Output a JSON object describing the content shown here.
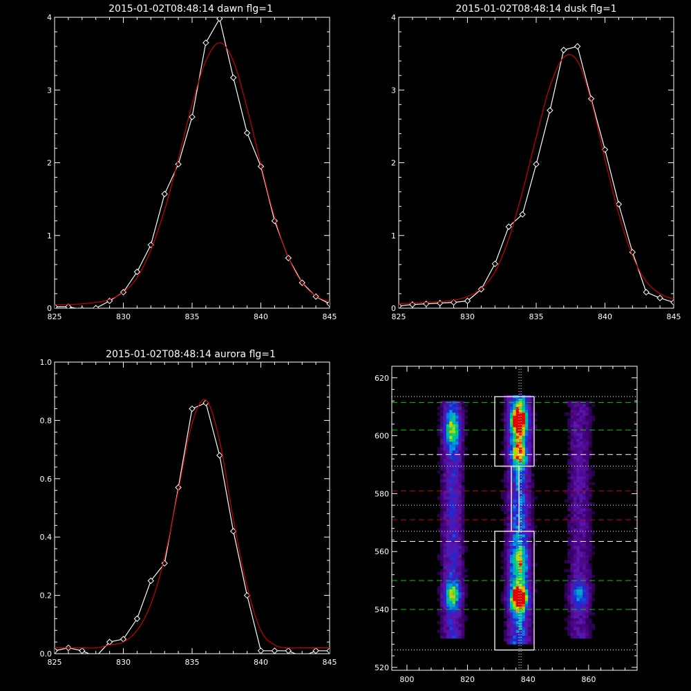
{
  "chart_data": [
    {
      "type": "line",
      "title": "2015-01-02T08:48:14 dawn flg=1",
      "xlim": [
        825,
        845
      ],
      "ylim": [
        0,
        4
      ],
      "xticks": [
        "825",
        "830",
        "835",
        "840",
        "845"
      ],
      "yticks": [
        "0",
        "1",
        "2",
        "3",
        "4"
      ],
      "series": [
        {
          "color": "#ffffff",
          "marker": "diamond",
          "x": [
            825,
            826,
            827,
            828,
            829,
            830,
            831,
            832,
            833,
            834,
            835,
            836,
            837,
            838,
            839,
            840,
            841,
            842,
            843,
            844,
            845
          ],
          "y": [
            0.02,
            0.02,
            -0.02,
            0.0,
            0.1,
            0.22,
            0.5,
            0.87,
            1.57,
            1.98,
            2.63,
            3.65,
            3.98,
            3.17,
            2.41,
            1.95,
            1.2,
            0.69,
            0.35,
            0.16,
            0.06
          ]
        },
        {
          "color": "#cc0000",
          "marker": "none",
          "x": [
            825,
            826,
            827,
            828,
            829,
            830,
            831,
            832,
            833,
            834,
            835,
            836,
            837,
            838,
            839,
            840,
            841,
            842,
            843,
            844,
            845
          ],
          "y": [
            0.05,
            0.05,
            0.06,
            0.08,
            0.12,
            0.22,
            0.42,
            0.8,
            1.35,
            2.05,
            2.8,
            3.4,
            3.65,
            3.4,
            2.75,
            1.98,
            1.25,
            0.7,
            0.35,
            0.17,
            0.09
          ]
        }
      ]
    },
    {
      "type": "line",
      "title": "2015-01-02T08:48:14 dusk flg=1",
      "xlim": [
        825,
        845
      ],
      "ylim": [
        0,
        4
      ],
      "xticks": [
        "825",
        "830",
        "835",
        "840",
        "845"
      ],
      "yticks": [
        "0",
        "1",
        "2",
        "3",
        "4"
      ],
      "series": [
        {
          "color": "#ffffff",
          "marker": "diamond",
          "x": [
            825,
            826,
            827,
            828,
            829,
            830,
            831,
            832,
            833,
            834,
            835,
            836,
            837,
            838,
            839,
            840,
            841,
            842,
            843,
            844,
            845
          ],
          "y": [
            0.03,
            0.05,
            0.06,
            0.07,
            0.08,
            0.1,
            0.26,
            0.61,
            1.12,
            1.29,
            1.98,
            2.72,
            3.55,
            3.6,
            2.88,
            2.18,
            1.43,
            0.77,
            0.22,
            0.14,
            0.08
          ]
        },
        {
          "color": "#cc0000",
          "marker": "none",
          "x": [
            825,
            826,
            827,
            828,
            829,
            830,
            831,
            832,
            833,
            834,
            835,
            836,
            837,
            838,
            839,
            840,
            841,
            842,
            843,
            844,
            845
          ],
          "y": [
            0.06,
            0.07,
            0.08,
            0.09,
            0.11,
            0.16,
            0.27,
            0.5,
            0.95,
            1.6,
            2.35,
            3.05,
            3.45,
            3.4,
            2.85,
            2.05,
            1.3,
            0.72,
            0.37,
            0.2,
            0.13
          ]
        }
      ]
    },
    {
      "type": "line",
      "title": "2015-01-02T08:48:14 aurora flg=1",
      "xlim": [
        825,
        845
      ],
      "ylim": [
        0,
        1
      ],
      "xticks": [
        "825",
        "830",
        "835",
        "840",
        "845"
      ],
      "yticks": [
        "0.0",
        "0.2",
        "0.4",
        "0.6",
        "0.8",
        "1.0"
      ],
      "series": [
        {
          "color": "#ffffff",
          "marker": "diamond",
          "x": [
            825,
            826,
            827,
            828,
            829,
            830,
            831,
            832,
            833,
            834,
            835,
            836,
            837,
            838,
            839,
            840,
            841,
            842,
            843,
            844,
            845
          ],
          "y": [
            0.01,
            0.02,
            0.01,
            -0.01,
            0.04,
            0.05,
            0.12,
            0.25,
            0.31,
            0.57,
            0.84,
            0.86,
            0.68,
            0.42,
            0.2,
            0.01,
            0.01,
            0.01,
            -0.01,
            0.01,
            0.01
          ]
        },
        {
          "color": "#cc0000",
          "marker": "none",
          "x": [
            825,
            826,
            827,
            828,
            829,
            830,
            831,
            832,
            833,
            834,
            835,
            836,
            837,
            838,
            839,
            840,
            841,
            842,
            843,
            844,
            845
          ],
          "y": [
            0.02,
            0.02,
            0.02,
            0.02,
            0.03,
            0.04,
            0.08,
            0.17,
            0.33,
            0.56,
            0.79,
            0.87,
            0.73,
            0.46,
            0.23,
            0.08,
            0.03,
            0.02,
            0.02,
            0.02,
            0.02
          ]
        }
      ]
    },
    {
      "type": "heatmap",
      "xlim": [
        795,
        876
      ],
      "ylim": [
        519,
        624
      ],
      "xticks": [
        {
          "v": 800,
          "label": "800"
        },
        {
          "v": 820,
          "label": "820"
        },
        {
          "v": 840,
          "label": "840"
        },
        {
          "v": 860,
          "label": "860"
        }
      ],
      "yticks": [
        {
          "v": 520,
          "label": "520"
        },
        {
          "v": 540,
          "label": "540"
        },
        {
          "v": 560,
          "label": "560"
        },
        {
          "v": 580,
          "label": "580"
        },
        {
          "v": 600,
          "label": "600"
        },
        {
          "v": 620,
          "label": "620"
        }
      ],
      "bands": [
        {
          "x": 815,
          "width": 2.2,
          "ymin": 530,
          "ymax": 612,
          "amp": 0.35
        },
        {
          "x": 837,
          "width": 2.4,
          "ymin": 528,
          "ymax": 614,
          "amp": 0.5
        },
        {
          "x": 857,
          "width": 2.5,
          "ymin": 530,
          "ymax": 612,
          "amp": 0.22
        }
      ],
      "hotspots": [
        {
          "x": 815,
          "y": 545,
          "amp": 0.55,
          "sx": 1.8,
          "sy": 3
        },
        {
          "x": 815,
          "y": 602,
          "amp": 0.5,
          "sx": 1.8,
          "sy": 4
        },
        {
          "x": 837,
          "y": 544,
          "amp": 1.0,
          "sx": 2,
          "sy": 3
        },
        {
          "x": 837,
          "y": 605,
          "amp": 0.85,
          "sx": 2,
          "sy": 4
        },
        {
          "x": 837,
          "y": 594,
          "amp": 0.55,
          "sx": 2,
          "sy": 3
        },
        {
          "x": 837,
          "y": 556,
          "amp": 0.45,
          "sx": 2,
          "sy": 4
        },
        {
          "x": 857,
          "y": 545,
          "amp": 0.35,
          "sx": 2,
          "sy": 3
        }
      ],
      "hlines": [
        {
          "y": 613.5,
          "color": "#ffffff",
          "style": "dotted"
        },
        {
          "y": 611.5,
          "color": "#00cc00",
          "style": "dashed"
        },
        {
          "y": 602,
          "color": "#00cc00",
          "style": "dashed"
        },
        {
          "y": 593.5,
          "color": "#ffffff",
          "style": "dashed"
        },
        {
          "y": 589.5,
          "color": "#ffffff",
          "style": "dotted"
        },
        {
          "y": 581,
          "color": "#cc0000",
          "style": "dashed"
        },
        {
          "y": 576,
          "color": "#ffffff",
          "style": "dotted"
        },
        {
          "y": 571,
          "color": "#cc0000",
          "style": "dashed"
        },
        {
          "y": 567,
          "color": "#ffffff",
          "style": "dotted"
        },
        {
          "y": 563.5,
          "color": "#ffffff",
          "style": "dashed"
        },
        {
          "y": 550,
          "color": "#00cc00",
          "style": "dashed"
        },
        {
          "y": 540,
          "color": "#00cc00",
          "style": "dashed"
        },
        {
          "y": 526,
          "color": "#ffffff",
          "style": "dotted"
        }
      ],
      "vline": {
        "x": 837,
        "color": "#ffffff",
        "style": "dotted"
      },
      "boxes": [
        {
          "x0": 829,
          "x1": 842,
          "y0": 589.5,
          "y1": 613.5
        },
        {
          "x0": 829,
          "x1": 842,
          "y0": 526,
          "y1": 567
        },
        {
          "x0": 834.5,
          "x1": 837,
          "y0": 567,
          "y1": 589.5
        }
      ]
    }
  ]
}
